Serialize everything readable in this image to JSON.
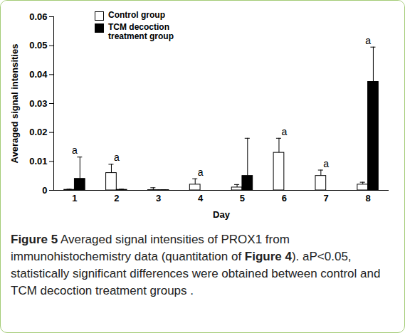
{
  "chart_data": {
    "type": "bar",
    "x_label": "Day",
    "y_label": "Averaged signal intensities",
    "caption": "Figure 5 Averaged signal intensities of PROX1 from immunohistochemistry data (quantitation of Figure 4). aP<0.05, statistically significant differences were obtained between control and TCM decoction treatment groups .",
    "categories": [
      1,
      2,
      3,
      4,
      5,
      6,
      7,
      8
    ],
    "series": [
      {
        "name": "Control group",
        "color": "#ffffff",
        "values": [
          0.0002,
          0.006,
          0.0001,
          0.002,
          0.001,
          0.013,
          0.005,
          0.002
        ],
        "errors": [
          0.0002,
          0.003,
          0.0008,
          0.002,
          0.001,
          0.005,
          0.002,
          0.0008
        ]
      },
      {
        "name": "TCM decoction treatment group",
        "color": "#000000",
        "values": [
          0.004,
          0.0002,
          0.0001,
          0,
          0.005,
          0,
          0,
          0.0375
        ],
        "errors": [
          0.0075,
          0.0002,
          0.0001,
          0,
          0.013,
          0,
          0,
          0.012
        ]
      }
    ],
    "ylim": [
      0,
      0.06
    ],
    "yticks": [
      0,
      0.01,
      0.02,
      0.03,
      0.04,
      0.05,
      0.06
    ],
    "legend": "top-left",
    "annotations": [
      {
        "category": 1,
        "text": "a"
      },
      {
        "category": 2,
        "text": "a"
      },
      {
        "category": 4,
        "text": "a"
      },
      {
        "category": 6,
        "text": "a"
      },
      {
        "category": 7,
        "text": "a"
      },
      {
        "category": 8,
        "text": "a"
      }
    ]
  }
}
